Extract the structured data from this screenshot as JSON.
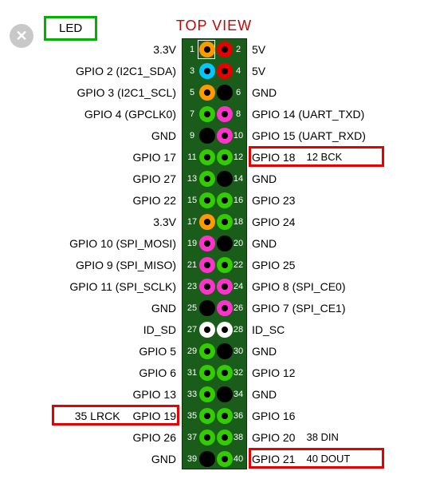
{
  "title": "TOP VIEW",
  "led_label": "LED",
  "board": {
    "bg": "#1a5c1a",
    "pin_colors": {
      "power33": "#ff9900",
      "power5": "#e60000",
      "gnd": "#000000",
      "gpio": "#33cc00",
      "i2c_sda": "#00c8ff",
      "i2c_scl": "#e60000",
      "uart": "#33cc00",
      "spi": "#ff33cc",
      "id": "#ffffff"
    }
  },
  "highlights": [
    {
      "id": "pin12",
      "row": 5,
      "side": "right",
      "label": "GPIO 18   12 BCK"
    },
    {
      "id": "pin35",
      "row": 17,
      "side": "left",
      "label": "35 LRCK    GPIO 19"
    },
    {
      "id": "pin38",
      "row": 18,
      "side": "right",
      "label": "GPIO 20   38 DIN"
    },
    {
      "id": "pin40",
      "row": 19,
      "side": "right",
      "label": "GPIO 21   40 DOUT"
    }
  ],
  "rows": [
    {
      "l_num": 1,
      "l_label": "3.3V",
      "l_color": "power33",
      "r_num": 2,
      "r_label": "5V",
      "r_color": "power5"
    },
    {
      "l_num": 3,
      "l_label": "GPIO 2 (I2C1_SDA)",
      "l_color": "i2c_sda",
      "r_num": 4,
      "r_label": "5V",
      "r_color": "power5"
    },
    {
      "l_num": 5,
      "l_label": "GPIO 3 (I2C1_SCL)",
      "l_color": "power33",
      "r_num": 6,
      "r_label": "GND",
      "r_color": "gnd"
    },
    {
      "l_num": 7,
      "l_label": "GPIO 4 (GPCLK0)",
      "l_color": "gpio",
      "r_num": 8,
      "r_label": "GPIO 14 (UART_TXD)",
      "r_color": "spi"
    },
    {
      "l_num": 9,
      "l_label": "GND",
      "l_color": "gnd",
      "r_num": 10,
      "r_label": "GPIO 15 (UART_RXD)",
      "r_color": "spi"
    },
    {
      "l_num": 11,
      "l_label": "GPIO 17",
      "l_color": "gpio",
      "r_num": 12,
      "r_label": "GPIO 18",
      "r_extra": "12 BCK",
      "r_color": "gpio",
      "r_hl": true
    },
    {
      "l_num": 13,
      "l_label": "GPIO 27",
      "l_color": "gpio",
      "r_num": 14,
      "r_label": "GND",
      "r_color": "gnd"
    },
    {
      "l_num": 15,
      "l_label": "GPIO 22",
      "l_color": "gpio",
      "r_num": 16,
      "r_label": "GPIO 23",
      "r_color": "gpio"
    },
    {
      "l_num": 17,
      "l_label": "3.3V",
      "l_color": "power33",
      "r_num": 18,
      "r_label": "GPIO 24",
      "r_color": "gpio"
    },
    {
      "l_num": 19,
      "l_label": "GPIO 10 (SPI_MOSI)",
      "l_color": "spi",
      "r_num": 20,
      "r_label": "GND",
      "r_color": "gnd"
    },
    {
      "l_num": 21,
      "l_label": "GPIO 9 (SPI_MISO)",
      "l_color": "spi",
      "r_num": 22,
      "r_label": "GPIO 25",
      "r_color": "gpio"
    },
    {
      "l_num": 23,
      "l_label": "GPIO 11 (SPI_SCLK)",
      "l_color": "spi",
      "r_num": 24,
      "r_label": "GPIO 8 (SPI_CE0)",
      "r_color": "spi"
    },
    {
      "l_num": 25,
      "l_label": "GND",
      "l_color": "gnd",
      "r_num": 26,
      "r_label": "GPIO 7 (SPI_CE1)",
      "r_color": "spi"
    },
    {
      "l_num": 27,
      "l_label": "ID_SD",
      "l_color": "id",
      "r_num": 28,
      "r_label": "ID_SC",
      "r_color": "id"
    },
    {
      "l_num": 29,
      "l_label": "GPIO 5",
      "l_color": "gpio",
      "r_num": 30,
      "r_label": "GND",
      "r_color": "gnd"
    },
    {
      "l_num": 31,
      "l_label": "GPIO 6",
      "l_color": "gpio",
      "r_num": 32,
      "r_label": "GPIO 12",
      "r_color": "gpio"
    },
    {
      "l_num": 33,
      "l_label": "GPIO 13",
      "l_color": "gpio",
      "r_num": 34,
      "r_label": "GND",
      "r_color": "gnd"
    },
    {
      "l_num": 35,
      "l_label": "GPIO 19",
      "l_extra_pre": "35 LRCK",
      "l_color": "gpio",
      "l_hl": true,
      "r_num": 36,
      "r_label": "GPIO 16",
      "r_color": "gpio"
    },
    {
      "l_num": 37,
      "l_label": "GPIO 26",
      "l_color": "gpio",
      "r_num": 38,
      "r_label": "GPIO 20",
      "r_extra": "38 DIN",
      "r_color": "gpio"
    },
    {
      "l_num": 39,
      "l_label": "GND",
      "l_color": "gnd",
      "r_num": 40,
      "r_label": "GPIO 21",
      "r_extra": "40 DOUT",
      "r_color": "gpio",
      "r_hl": true
    }
  ]
}
